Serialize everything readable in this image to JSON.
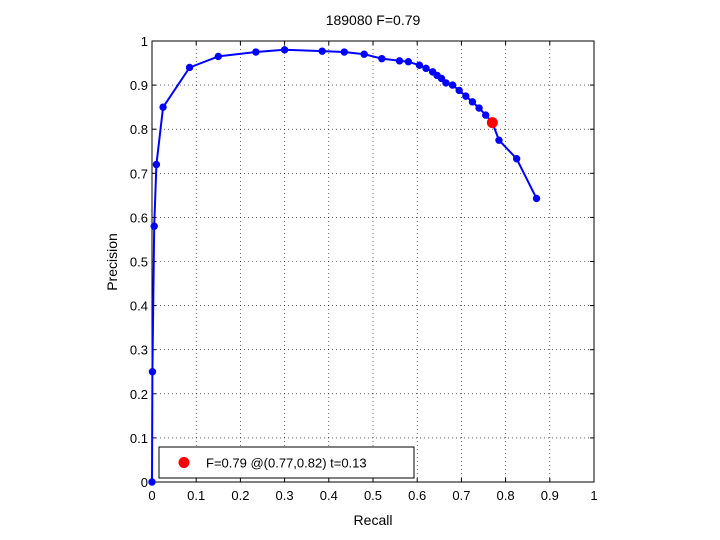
{
  "chart_data": {
    "type": "line",
    "title": "189080 F=0.79",
    "xlabel": "Recall",
    "ylabel": "Precision",
    "xlim": [
      0,
      1
    ],
    "ylim": [
      0,
      1
    ],
    "xticks": [
      0,
      0.1,
      0.2,
      0.3,
      0.4,
      0.5,
      0.6,
      0.7,
      0.8,
      0.9,
      1
    ],
    "yticks": [
      0,
      0.1,
      0.2,
      0.3,
      0.4,
      0.5,
      0.6,
      0.7,
      0.8,
      0.9,
      1
    ],
    "xtick_labels": [
      "0",
      "0.1",
      "0.2",
      "0.3",
      "0.4",
      "0.5",
      "0.6",
      "0.7",
      "0.8",
      "0.9",
      "1"
    ],
    "ytick_labels": [
      "0",
      "0.1",
      "0.2",
      "0.3",
      "0.4",
      "0.5",
      "0.6",
      "0.7",
      "0.8",
      "0.9",
      "1"
    ],
    "grid": true,
    "series": [
      {
        "color": "#0000ff",
        "x": [
          0.0,
          0.001,
          0.005,
          0.01,
          0.025,
          0.085,
          0.15,
          0.235,
          0.3,
          0.385,
          0.435,
          0.48,
          0.52,
          0.56,
          0.58,
          0.605,
          0.62,
          0.635,
          0.645,
          0.655,
          0.665,
          0.68,
          0.695,
          0.71,
          0.725,
          0.74,
          0.755,
          0.77,
          0.785,
          0.825,
          0.87
        ],
        "y": [
          0.0,
          0.25,
          0.58,
          0.72,
          0.85,
          0.94,
          0.965,
          0.975,
          0.98,
          0.977,
          0.975,
          0.97,
          0.96,
          0.955,
          0.953,
          0.945,
          0.938,
          0.93,
          0.922,
          0.915,
          0.905,
          0.9,
          0.888,
          0.875,
          0.862,
          0.848,
          0.832,
          0.815,
          0.775,
          0.733,
          0.643
        ]
      }
    ],
    "highlight_point": {
      "x": 0.77,
      "y": 0.815,
      "color": "#ff0000"
    },
    "legend": {
      "position": "bottom-left",
      "entries": [
        {
          "label": "F=0.79 @(0.77,0.82) t=0.13",
          "color": "#ff0000"
        }
      ]
    }
  }
}
